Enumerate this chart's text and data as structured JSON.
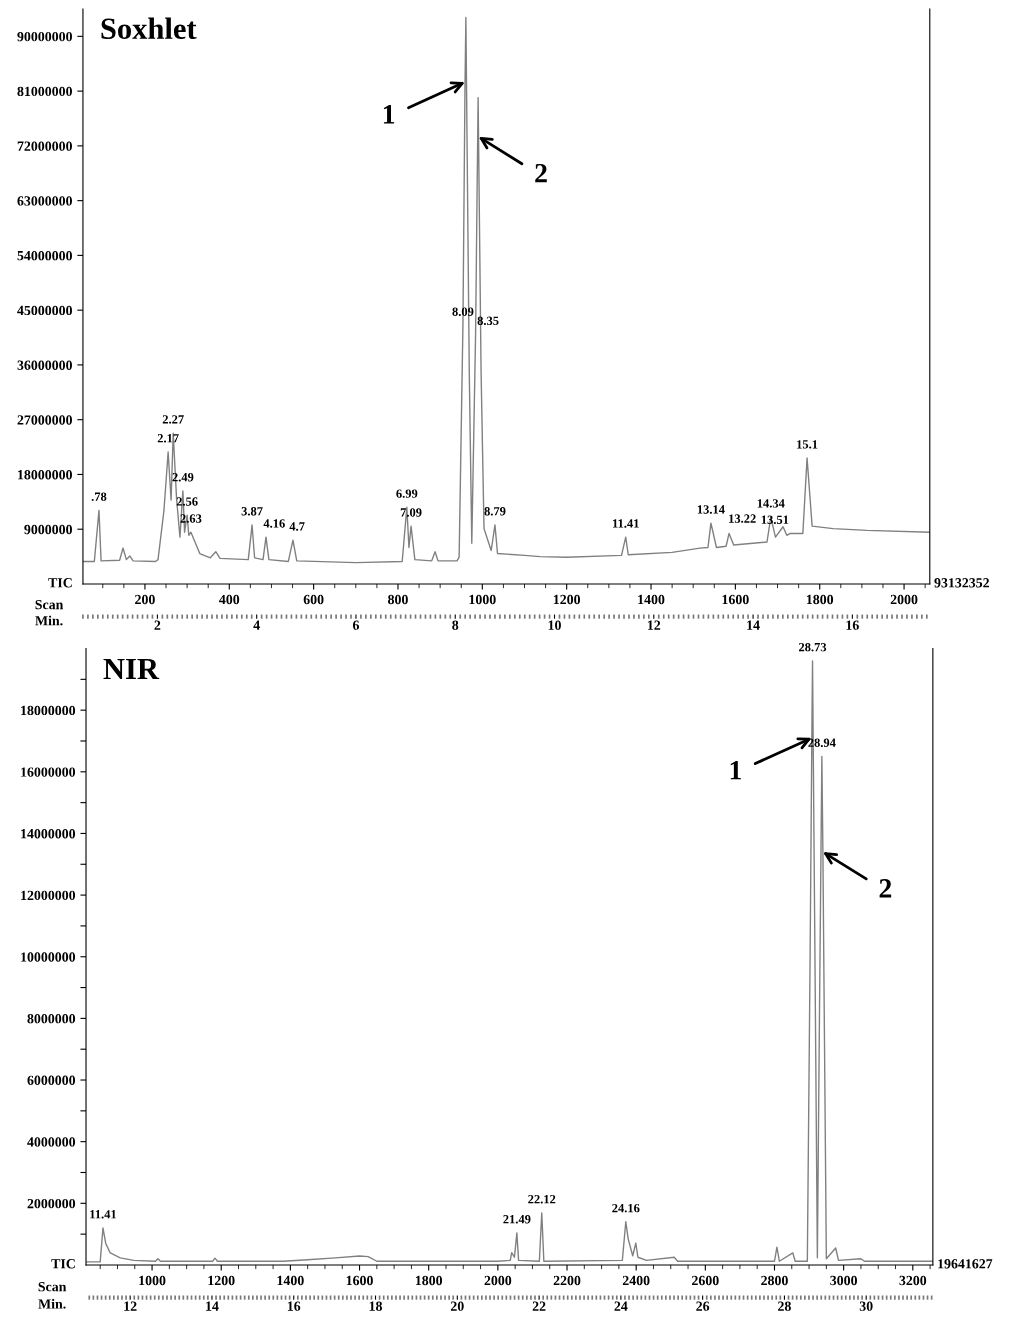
{
  "chart_data": [
    {
      "type": "line",
      "title": "Soxhlet",
      "xlabel": "Scan",
      "x2label": "Min.",
      "x": [
        53,
        80,
        91,
        96,
        140,
        148,
        156,
        164,
        172,
        225,
        231,
        245,
        255,
        262,
        267,
        275,
        283,
        290,
        294,
        300,
        304,
        309,
        330,
        355,
        368,
        378,
        445,
        454,
        460,
        480,
        487,
        494,
        540,
        551,
        560,
        700,
        810,
        821,
        826,
        831,
        840,
        880,
        888,
        895,
        940,
        945,
        954,
        959,
        961,
        969,
        975,
        984,
        990,
        991,
        997,
        1004,
        1021,
        1030,
        1036,
        1100,
        1137,
        1200,
        1330,
        1340,
        1346,
        1450,
        1516,
        1535,
        1542,
        1547,
        1555,
        1578,
        1585,
        1596,
        1675,
        1684,
        1695,
        1713,
        1722,
        1730,
        1760,
        1770,
        1782,
        1832,
        1912,
        2061
      ],
      "series": [
        {
          "color": "#808080",
          "values": [
            3700000,
            3700000,
            12100000,
            3800000,
            3900000,
            5900000,
            4000000,
            4600000,
            3800000,
            3700000,
            4000000,
            12000000,
            21700000,
            13800000,
            24800000,
            14000000,
            7700000,
            15300000,
            8500000,
            11300000,
            8000000,
            8500000,
            5000000,
            4300000,
            5300000,
            4200000,
            4000000,
            9700000,
            4300000,
            4000000,
            7700000,
            4000000,
            3700000,
            7200000,
            3800000,
            3500000,
            3700000,
            12600000,
            6000000,
            9500000,
            4000000,
            3800000,
            5300000,
            3800000,
            3800000,
            4400000,
            42500000,
            82500000,
            93100000,
            35000000,
            6700000,
            41000000,
            79900000,
            73500000,
            35000000,
            9100000,
            5500000,
            9700000,
            5000000,
            4700000,
            4500000,
            4400000,
            4700000,
            7700000,
            4800000,
            5200000,
            5900000,
            6000000,
            10000000,
            8500000,
            6000000,
            6200000,
            8300000,
            6400000,
            6900000,
            11000000,
            7700000,
            9400000,
            8000000,
            8300000,
            8300000,
            20700000,
            9500000,
            9100000,
            8800000,
            8500000
          ]
        }
      ],
      "xlim": [
        53,
        2061
      ],
      "xticks": [
        200,
        400,
        600,
        800,
        1000,
        1200,
        1400,
        1600,
        1800,
        2000
      ],
      "x2lim": [
        0.5,
        17.56
      ],
      "x2ticks": [
        2,
        4,
        6,
        8,
        10,
        12,
        14,
        16
      ],
      "ylim": [
        0,
        94500000
      ],
      "yticks": [
        9000000,
        18000000,
        27000000,
        36000000,
        45000000,
        54000000,
        63000000,
        72000000,
        81000000,
        90000000
      ],
      "annotations": [
        "TIC",
        "93132352",
        {
          "text": ".78",
          "x": 91,
          "y": 12100000
        },
        {
          "text": "2.17",
          "x": 255,
          "y": 21700000
        },
        {
          "text": "2.27",
          "x": 267,
          "y": 24800000
        },
        {
          "text": "2.49",
          "x": 290,
          "y": 15300000
        },
        {
          "text": "2.56",
          "x": 300,
          "y": 11300000
        },
        {
          "text": "2.63",
          "x": 309,
          "y": 8500000
        },
        {
          "text": "3.87",
          "x": 454,
          "y": 9700000
        },
        {
          "text": "4.16",
          "x": 487,
          "y": 7700000
        },
        {
          "text": "4.7",
          "x": 551,
          "y": 7200000
        },
        {
          "text": "6.99",
          "x": 821,
          "y": 12600000
        },
        {
          "text": "7.09",
          "x": 831,
          "y": 9500000
        },
        {
          "text": "8.09",
          "x": 954,
          "y": 42500000
        },
        {
          "text": "8.35",
          "x": 984,
          "y": 41000000
        },
        {
          "text": "8.79",
          "x": 1030,
          "y": 9700000
        },
        {
          "text": "11.41",
          "x": 1340,
          "y": 7700000
        },
        {
          "text": "13.14",
          "x": 1542,
          "y": 10000000
        },
        {
          "text": "13.22",
          "x": 1547,
          "y": 8500000
        },
        {
          "text": "13.51",
          "x": 1585,
          "y": 8300000
        },
        {
          "text": "14.34",
          "x": 1684,
          "y": 11000000
        },
        {
          "text": "15.1",
          "x": 1770,
          "y": 20700000
        },
        {
          "text": "1",
          "x": 959,
          "y": 82500000
        },
        {
          "text": "2",
          "x": 991,
          "y": 73500000
        }
      ]
    },
    {
      "type": "line",
      "title": "NIR",
      "xlabel": "Scan",
      "x2label": "Min.",
      "x": [
        809,
        850,
        858,
        866,
        879,
        908,
        947,
        1010,
        1017,
        1024,
        1175,
        1182,
        1189,
        1300,
        1380,
        1450,
        1530,
        1600,
        1625,
        1650,
        2000,
        2036,
        2040,
        2048,
        2055,
        2060,
        2120,
        2127,
        2133,
        2360,
        2370,
        2377,
        2390,
        2399,
        2405,
        2430,
        2510,
        2520,
        2800,
        2807,
        2814,
        2853,
        2860,
        2895,
        2903,
        2908,
        2910,
        2917,
        2924,
        2930,
        2937,
        2940,
        2944,
        2950,
        2977,
        2985,
        3050,
        3060,
        3258
      ],
      "series": [
        {
          "color": "#808080",
          "values": [
            100000,
            100000,
            1200000,
            700000,
            390000,
            230000,
            150000,
            120000,
            200000,
            120000,
            120000,
            220000,
            120000,
            120000,
            120000,
            170000,
            230000,
            290000,
            270000,
            120000,
            120000,
            150000,
            400000,
            250000,
            1040000,
            150000,
            120000,
            1690000,
            120000,
            150000,
            1400000,
            840000,
            300000,
            710000,
            250000,
            150000,
            250000,
            120000,
            120000,
            580000,
            120000,
            390000,
            120000,
            120000,
            10000000,
            17100000,
            19600000,
            10000000,
            230000,
            8000000,
            16500000,
            13400000,
            8000000,
            200000,
            550000,
            150000,
            200000,
            120000,
            120000
          ]
        }
      ],
      "xlim": [
        809,
        3258
      ],
      "xticks": [
        1000,
        1200,
        1400,
        1600,
        1800,
        2000,
        2200,
        2400,
        2600,
        2800,
        3000,
        3200
      ],
      "x2lim": [
        10.92,
        31.63
      ],
      "x2ticks": [
        12,
        14,
        16,
        18,
        20,
        22,
        24,
        26,
        28,
        30
      ],
      "ylim": [
        0,
        20000000
      ],
      "yticks": [
        {
          "value": 1000000,
          "label": null
        },
        2000000,
        {
          "value": 3000000,
          "label": null
        },
        4000000,
        {
          "value": 5000000,
          "label": null
        },
        6000000,
        {
          "value": 7000000,
          "label": null
        },
        8000000,
        {
          "value": 9000000,
          "label": null
        },
        10000000,
        {
          "value": 11000000,
          "label": null
        },
        12000000,
        {
          "value": 13000000,
          "label": null
        },
        14000000,
        {
          "value": 15000000,
          "label": null
        },
        16000000,
        {
          "value": 17000000,
          "label": null
        },
        18000000,
        {
          "value": 19000000,
          "label": null
        }
      ],
      "annotations": [
        "TIC",
        "19641627",
        {
          "text": "11.41",
          "x": 858,
          "y": 1200000
        },
        {
          "text": "21.49",
          "x": 2055,
          "y": 1040000
        },
        {
          "text": "22.12",
          "x": 2127,
          "y": 1690000
        },
        {
          "text": "24.16",
          "x": 2370,
          "y": 1400000
        },
        {
          "text": "28.73",
          "x": 2910,
          "y": 19600000
        },
        {
          "text": "28.94",
          "x": 2937,
          "y": 16500000
        },
        {
          "text": "1",
          "x": 2908,
          "y": 17100000
        },
        {
          "text": "2",
          "x": 2940,
          "y": 13400000
        }
      ]
    }
  ]
}
